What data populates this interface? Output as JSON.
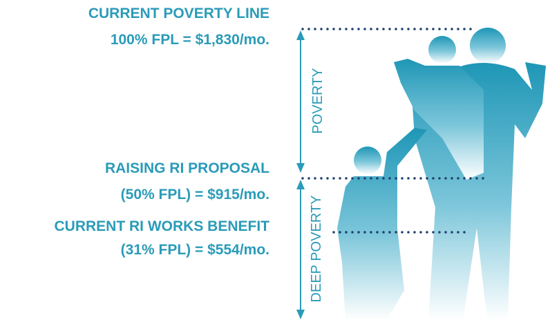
{
  "levels": [
    {
      "title": "CURRENT POVERTY LINE",
      "amount": "100% FPL = $1,830/mo."
    },
    {
      "title": "RAISING RI PROPOSAL",
      "amount": "(50% FPL) = $915/mo."
    },
    {
      "title": "CURRENT RI WORKS BENEFIT",
      "amount": "(31% FPL) = $554/mo."
    }
  ],
  "bands": [
    "POVERTY",
    "DEEP POVERTY"
  ]
}
